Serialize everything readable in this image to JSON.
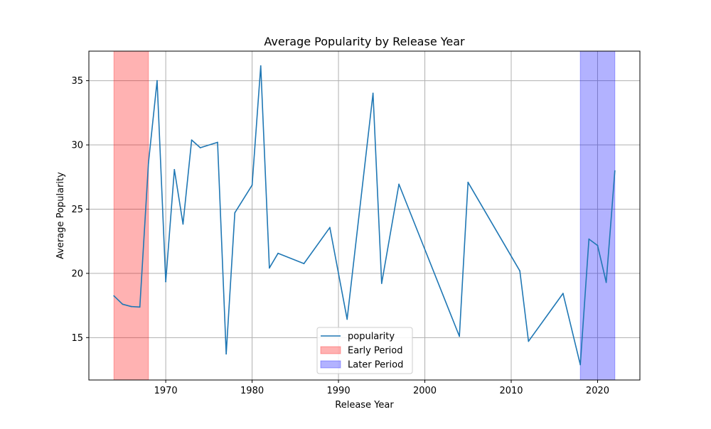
{
  "chart_data": {
    "type": "line",
    "title": "Average Popularity by Release Year",
    "xlabel": "Release Year",
    "ylabel": "Average Popularity",
    "xlim": [
      1961.1,
      2024.9
    ],
    "ylim": [
      11.7,
      37.3
    ],
    "xticks": [
      1970,
      1980,
      1990,
      2000,
      2010,
      2020
    ],
    "yticks": [
      15,
      20,
      25,
      30,
      35
    ],
    "grid": true,
    "legend_position": "bottom-center",
    "series": [
      {
        "name": "popularity",
        "color": "#1f77b4",
        "x": [
          1964,
          1965,
          1966,
          1967,
          1968,
          1969,
          1970,
          1971,
          1972,
          1973,
          1974,
          1976,
          1977,
          1978,
          1980,
          1981,
          1982,
          1983,
          1986,
          1989,
          1991,
          1994,
          1995,
          1997,
          2004,
          2005,
          2011,
          2012,
          2016,
          2018,
          2019,
          2020,
          2021,
          2022
        ],
        "y": [
          18.25,
          17.6,
          17.42,
          17.38,
          28.6,
          35.0,
          19.35,
          28.08,
          23.84,
          30.38,
          29.78,
          30.2,
          13.73,
          24.72,
          26.87,
          36.15,
          20.42,
          21.56,
          20.76,
          23.57,
          16.43,
          34.02,
          19.22,
          26.94,
          15.1,
          27.09,
          20.19,
          14.71,
          18.44,
          12.89,
          22.67,
          22.17,
          19.3,
          27.98
        ]
      }
    ],
    "regions": [
      {
        "name": "Early Period",
        "x_start": 1964,
        "x_end": 1968,
        "color": "#ff0000",
        "opacity": 0.3
      },
      {
        "name": "Later Period",
        "x_start": 2018,
        "x_end": 2022,
        "color": "#0000ff",
        "opacity": 0.3
      }
    ]
  }
}
